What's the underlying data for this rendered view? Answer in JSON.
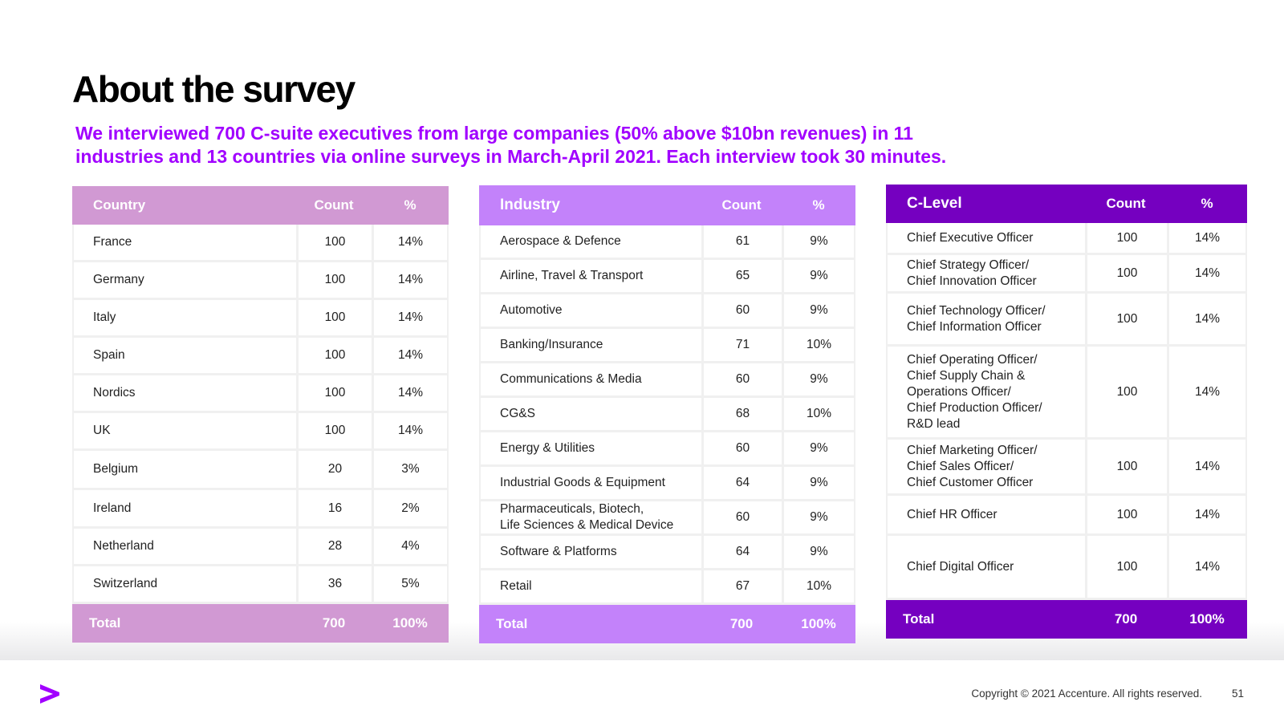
{
  "title": "About the survey",
  "subtitle": "We interviewed 700 C-suite executives from large companies (50% above $10bn revenues) in  11 industries and 13 countries via online surveys in March-April 2021. Each interview took 30 minutes.",
  "country_table": {
    "headers": [
      "Country",
      "Count",
      "%"
    ],
    "rows": [
      {
        "name": "France",
        "count": "100",
        "pct": "14%"
      },
      {
        "name": "Germany",
        "count": "100",
        "pct": "14%"
      },
      {
        "name": "Italy",
        "count": "100",
        "pct": "14%"
      },
      {
        "name": "Spain",
        "count": "100",
        "pct": "14%"
      },
      {
        "name": "Nordics",
        "count": "100",
        "pct": "14%"
      },
      {
        "name": "UK",
        "count": "100",
        "pct": "14%"
      },
      {
        "name": "Belgium",
        "count": "20",
        "pct": "3%"
      },
      {
        "name": "Ireland",
        "count": "16",
        "pct": "2%"
      },
      {
        "name": "Netherland",
        "count": "28",
        "pct": "4%"
      },
      {
        "name": "Switzerland",
        "count": "36",
        "pct": "5%"
      }
    ],
    "total": {
      "label": "Total",
      "count": "700",
      "pct": "100%"
    }
  },
  "industry_table": {
    "headers": [
      "Industry",
      "Count",
      "%"
    ],
    "rows": [
      {
        "name": "Aerospace & Defence",
        "count": "61",
        "pct": "9%"
      },
      {
        "name": "Airline, Travel & Transport",
        "count": "65",
        "pct": "9%"
      },
      {
        "name": "Automotive",
        "count": "60",
        "pct": "9%"
      },
      {
        "name": "Banking/Insurance",
        "count": "71",
        "pct": "10%"
      },
      {
        "name": "Communications & Media",
        "count": "60",
        "pct": "9%"
      },
      {
        "name": "CG&S",
        "count": "68",
        "pct": "10%"
      },
      {
        "name": "Energy & Utilities",
        "count": "60",
        "pct": "9%"
      },
      {
        "name": "Industrial Goods & Equipment",
        "count": "64",
        "pct": "9%"
      },
      {
        "name": "Pharmaceuticals, Biotech,\nLife Sciences & Medical Device",
        "count": "60",
        "pct": "9%"
      },
      {
        "name": "Software & Platforms",
        "count": "64",
        "pct": "9%"
      },
      {
        "name": "Retail",
        "count": "67",
        "pct": "10%"
      }
    ],
    "total": {
      "label": "Total",
      "count": "700",
      "pct": "100%"
    }
  },
  "clevel_table": {
    "headers": [
      "C-Level",
      "Count",
      "%"
    ],
    "rows": [
      {
        "name": "Chief Executive Officer",
        "count": "100",
        "pct": "14%"
      },
      {
        "name": "Chief Strategy Officer/\nChief Innovation Officer",
        "count": "100",
        "pct": "14%"
      },
      {
        "name": "Chief Technology Officer/\nChief Information Officer",
        "count": "100",
        "pct": "14%"
      },
      {
        "name": "Chief Operating Officer/\nChief Supply Chain &\nOperations Officer/\nChief Production Officer/\nR&D lead",
        "count": "100",
        "pct": "14%"
      },
      {
        "name": "Chief Marketing Officer/\nChief Sales Officer/\nChief Customer Officer",
        "count": "100",
        "pct": "14%"
      },
      {
        "name": "Chief HR Officer",
        "count": "100",
        "pct": "14%"
      },
      {
        "name": "Chief Digital Officer",
        "count": "100",
        "pct": "14%"
      }
    ],
    "total": {
      "label": "Total",
      "count": "700",
      "pct": "100%"
    }
  },
  "footer": {
    "copyright": "Copyright © 2021 Accenture. All rights reserved.",
    "page_number": "51",
    "logo_icon": "accenture-chevron-icon"
  },
  "colors": {
    "accent": "#a100ff",
    "country_header": "#d199d3",
    "industry_header": "#c382fa",
    "clevel_header": "#7500c0"
  }
}
